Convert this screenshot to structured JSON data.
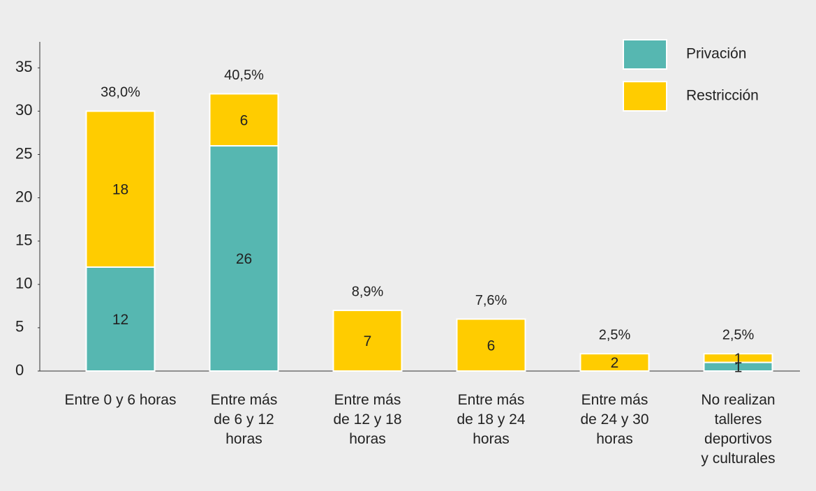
{
  "chart_data": {
    "type": "bar",
    "stacked": true,
    "categories": [
      [
        "Entre 0 y 6 horas"
      ],
      [
        "Entre más",
        "de 6 y 12",
        "horas"
      ],
      [
        "Entre más",
        "de 12 y 18",
        "horas"
      ],
      [
        "Entre más",
        "de 18 y 24",
        "horas"
      ],
      [
        "Entre más",
        "de 24 y 30",
        "horas"
      ],
      [
        "No realizan",
        "talleres",
        "deportivos",
        "y culturales"
      ]
    ],
    "series": [
      {
        "name": "Privación",
        "color": "#56b7b1",
        "values": [
          12,
          26,
          null,
          null,
          null,
          1
        ]
      },
      {
        "name": "Restricción",
        "color": "#ffcc00",
        "values": [
          18,
          6,
          7,
          6,
          2,
          1
        ]
      }
    ],
    "annotations": [
      "38,0%",
      "40,5%",
      "8,9%",
      "7,6%",
      "2,5%",
      "2,5%"
    ],
    "ylim": [
      0,
      38
    ],
    "yticks": [
      0,
      5,
      10,
      15,
      20,
      25,
      30,
      35
    ],
    "legend": "top-right"
  }
}
